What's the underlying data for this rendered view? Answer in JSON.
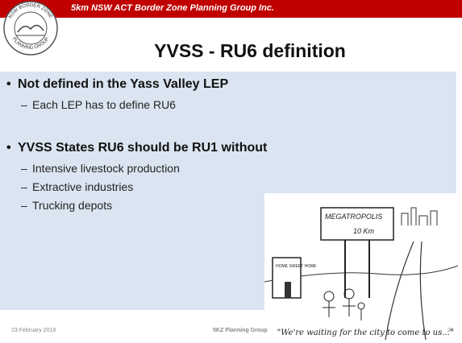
{
  "header": {
    "banner": "5km NSW ACT Border Zone Planning Group Inc.",
    "logo_top": "NSW BORDER ZONE",
    "logo_bottom": "PLANNING GROUP"
  },
  "title": "YVSS - RU6 definition",
  "bullets": [
    {
      "text": "Not defined in the Yass Valley LEP",
      "sub": [
        "Each LEP has to define RU6"
      ]
    },
    {
      "text": "YVSS States RU6 should be RU1 without",
      "sub": [
        "Intensive livestock production",
        "Extractive industries",
        "Trucking depots"
      ]
    }
  ],
  "cartoon": {
    "sign": "MEGATROPOLIS",
    "distance": "10 Km",
    "house": "HOME SWEET HOME",
    "caption": "\"We're waiting for the city to come to us...\""
  },
  "footer": {
    "date": "23 February 2019",
    "org": "5KZ Planning Group",
    "page": "24"
  }
}
